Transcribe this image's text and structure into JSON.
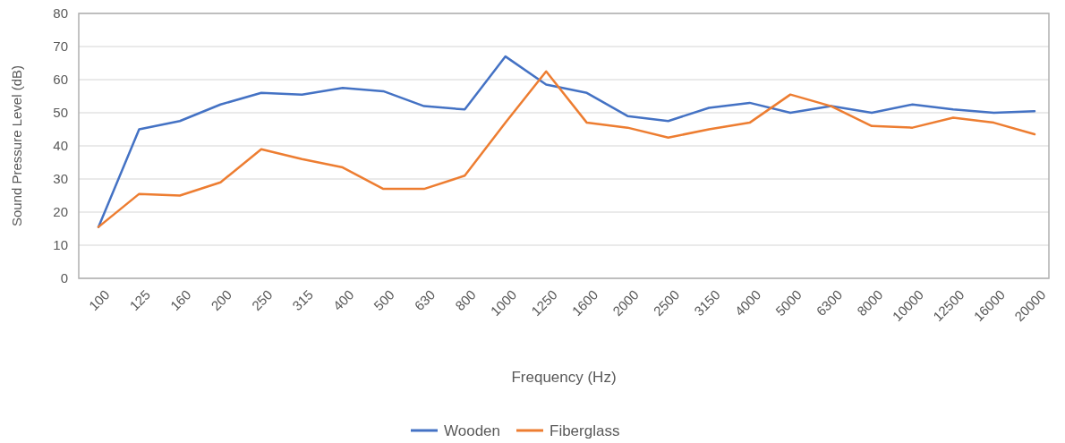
{
  "chart_data": {
    "type": "line",
    "xlabel": "Frequency (Hz)",
    "ylabel": "Sound Pressure Level (dB)",
    "categories": [
      "100",
      "125",
      "160",
      "200",
      "250",
      "315",
      "400",
      "500",
      "630",
      "800",
      "1000",
      "1250",
      "1600",
      "2000",
      "2500",
      "3150",
      "4000",
      "5000",
      "6300",
      "8000",
      "10000",
      "12500",
      "16000",
      "20000"
    ],
    "series": [
      {
        "name": "Wooden",
        "color": "#4472c4",
        "values": [
          15.5,
          45,
          47.5,
          52.5,
          56,
          55.5,
          57.5,
          56.5,
          52,
          51,
          67,
          58.5,
          56,
          49,
          47.5,
          51.5,
          53,
          50,
          52,
          50,
          52.5,
          51,
          50,
          50.5
        ]
      },
      {
        "name": "Fiberglass",
        "color": "#ed7d31",
        "values": [
          15.5,
          25.5,
          25,
          29,
          39,
          36,
          33.5,
          27,
          27,
          31,
          47,
          62.5,
          47,
          45.5,
          42.5,
          45,
          47,
          55.5,
          52,
          46,
          45.5,
          48.5,
          47,
          43.5
        ]
      }
    ],
    "ylim": [
      0,
      80
    ],
    "yticks": [
      0,
      10,
      20,
      30,
      40,
      50,
      60,
      70,
      80
    ],
    "grid": "y",
    "legend": "bottom",
    "marker": "none",
    "line_style": "solid"
  }
}
